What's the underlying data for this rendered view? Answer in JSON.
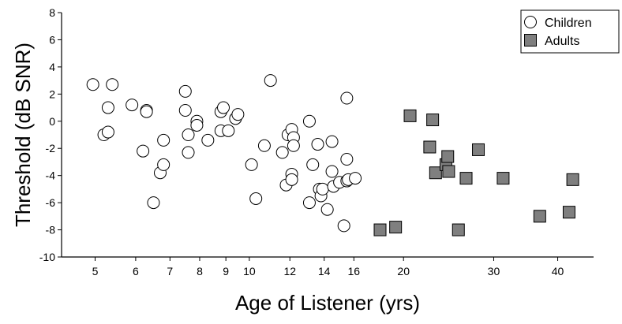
{
  "chart_data": {
    "type": "scatter",
    "title": "",
    "xlabel": "Age of Listener (yrs)",
    "ylabel": "Threshold (dB SNR)",
    "x_scale": "log",
    "xlim": [
      4.3,
      47
    ],
    "ylim": [
      -10,
      8
    ],
    "x_ticks": [
      5,
      6,
      7,
      8,
      9,
      10,
      12,
      14,
      16,
      20,
      30,
      40
    ],
    "x_tick_labels": [
      "5",
      "6",
      "7",
      "8",
      "9",
      "10",
      "12",
      "14",
      "16",
      "20",
      "30",
      "40"
    ],
    "y_ticks": [
      -10,
      -8,
      -6,
      -4,
      -2,
      0,
      2,
      4,
      6,
      8
    ],
    "y_tick_labels": [
      "-10",
      "-8",
      "-6",
      "-4",
      "-2",
      "0",
      "2",
      "4",
      "6",
      "8"
    ],
    "grid": false,
    "legend_position": "top-right",
    "series": [
      {
        "name": "Children",
        "marker": "open-circle",
        "color": "#000000",
        "points": [
          [
            4.95,
            2.7
          ],
          [
            5.2,
            -1.0
          ],
          [
            5.3,
            1.0
          ],
          [
            5.3,
            -0.8
          ],
          [
            5.4,
            2.7
          ],
          [
            5.9,
            1.2
          ],
          [
            6.2,
            -2.2
          ],
          [
            6.3,
            0.8
          ],
          [
            6.3,
            0.7
          ],
          [
            6.5,
            -6.0
          ],
          [
            6.7,
            -3.8
          ],
          [
            6.8,
            -3.2
          ],
          [
            6.8,
            -1.4
          ],
          [
            7.5,
            2.2
          ],
          [
            7.5,
            0.8
          ],
          [
            7.6,
            -1.0
          ],
          [
            7.6,
            -2.3
          ],
          [
            7.9,
            0.0
          ],
          [
            7.9,
            -0.3
          ],
          [
            8.3,
            -1.4
          ],
          [
            8.8,
            0.7
          ],
          [
            8.8,
            -0.7
          ],
          [
            8.9,
            1.0
          ],
          [
            9.1,
            -0.7
          ],
          [
            9.4,
            0.2
          ],
          [
            9.5,
            0.5
          ],
          [
            10.1,
            -3.2
          ],
          [
            10.3,
            -5.7
          ],
          [
            10.7,
            -1.8
          ],
          [
            11.0,
            3.0
          ],
          [
            11.6,
            -2.3
          ],
          [
            11.8,
            -4.7
          ],
          [
            11.9,
            -1.0
          ],
          [
            12.1,
            -0.6
          ],
          [
            12.1,
            -3.9
          ],
          [
            12.1,
            -4.3
          ],
          [
            12.2,
            -1.2
          ],
          [
            12.2,
            -1.8
          ],
          [
            13.1,
            0.0
          ],
          [
            13.1,
            -6.0
          ],
          [
            13.3,
            -3.2
          ],
          [
            13.6,
            -1.7
          ],
          [
            13.7,
            -5.0
          ],
          [
            13.8,
            -5.5
          ],
          [
            13.9,
            -5.0
          ],
          [
            14.2,
            -6.5
          ],
          [
            14.5,
            -1.5
          ],
          [
            14.5,
            -3.7
          ],
          [
            14.6,
            -4.8
          ],
          [
            15.0,
            -4.5
          ],
          [
            15.3,
            -7.7
          ],
          [
            15.5,
            1.7
          ],
          [
            15.5,
            -2.8
          ],
          [
            15.5,
            -4.4
          ],
          [
            15.6,
            -4.3
          ],
          [
            16.1,
            -4.2
          ]
        ]
      },
      {
        "name": "Adults",
        "marker": "filled-square",
        "color": "#7f7f7f",
        "points": [
          [
            18.0,
            -8.0
          ],
          [
            19.3,
            -7.8
          ],
          [
            20.6,
            0.4
          ],
          [
            22.5,
            -1.9
          ],
          [
            22.8,
            0.1
          ],
          [
            23.1,
            -3.8
          ],
          [
            24.2,
            -3.2
          ],
          [
            24.4,
            -2.6
          ],
          [
            24.5,
            -3.7
          ],
          [
            25.6,
            -8.0
          ],
          [
            26.5,
            -4.2
          ],
          [
            28.0,
            -2.1
          ],
          [
            31.3,
            -4.2
          ],
          [
            36.9,
            -7.0
          ],
          [
            42.1,
            -6.7
          ],
          [
            42.8,
            -4.3
          ]
        ]
      }
    ]
  }
}
